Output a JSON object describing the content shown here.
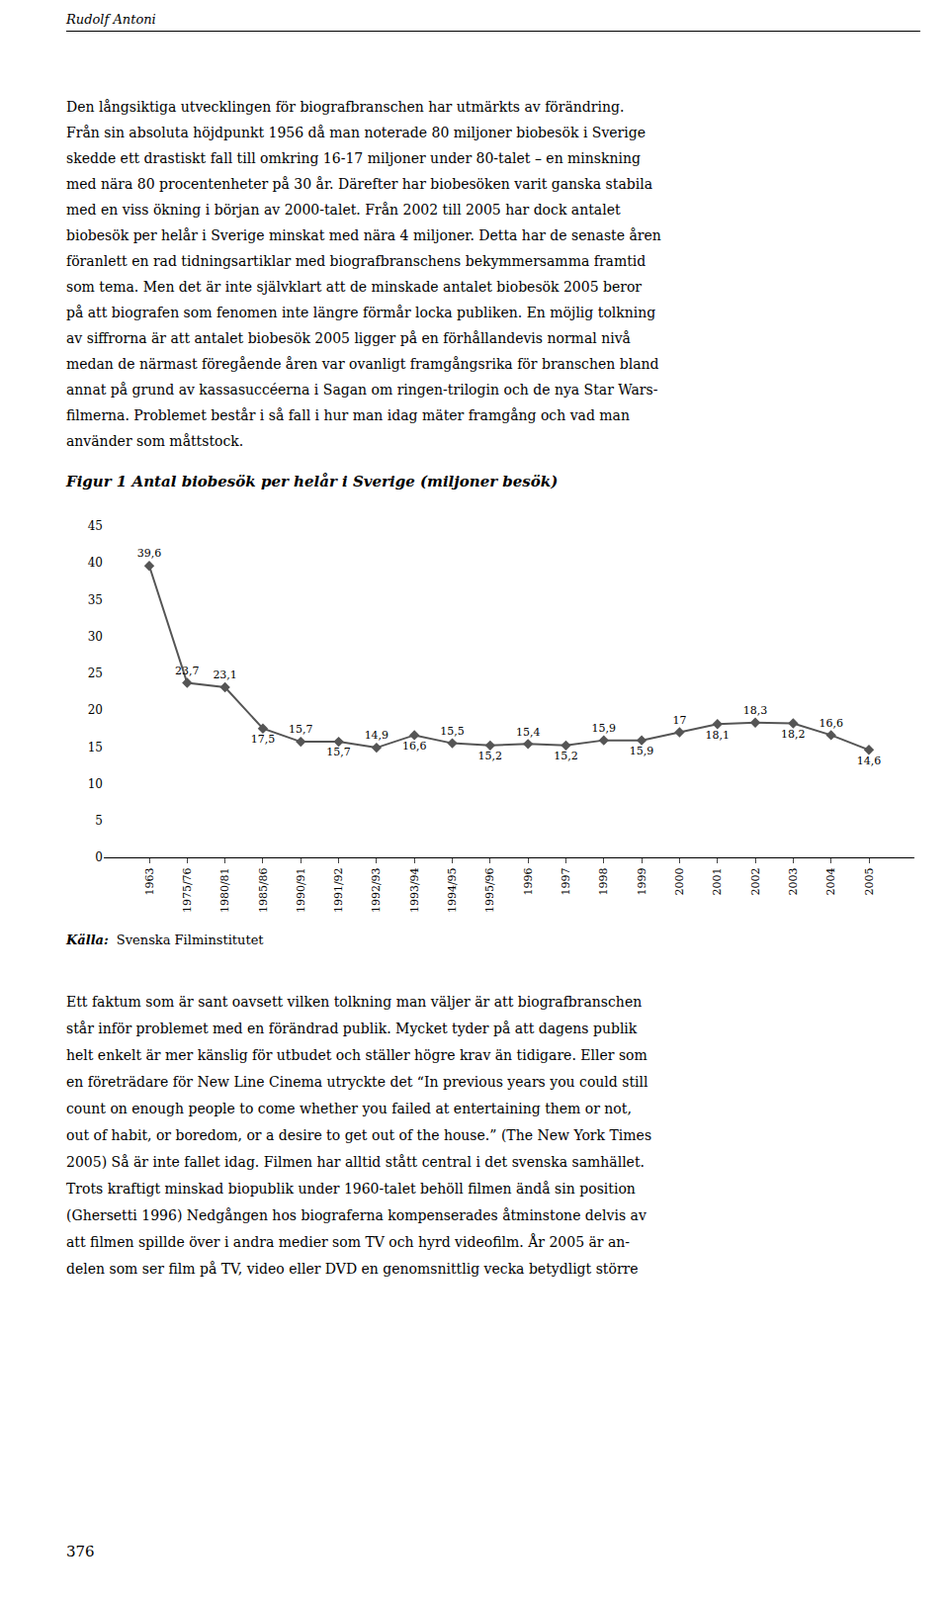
{
  "chart_data": {
    "type": "line",
    "title": "Figur 1 Antal biobesök per helår i Sverige (miljoner besök)",
    "header": "Rudolf Antoni",
    "categories": [
      "1963",
      "1975/76",
      "1980/81",
      "1985/86",
      "1990/91",
      "1991/92",
      "1992/93",
      "1993/94",
      "1994/95",
      "1995/96",
      "1996",
      "1997",
      "1998",
      "1999",
      "2000",
      "2001",
      "2002",
      "2003",
      "2004",
      "2005"
    ],
    "values": [
      39.6,
      23.7,
      23.1,
      17.5,
      15.7,
      15.7,
      14.9,
      16.6,
      15.5,
      15.2,
      15.4,
      15.2,
      15.9,
      15.9,
      17.0,
      18.1,
      18.3,
      18.2,
      16.6,
      14.6
    ],
    "value_labels": [
      "39,6",
      "23,7",
      "23,1",
      "17,5",
      "15,7",
      "15,7",
      "14,9",
      "16,6",
      "15,5",
      "15,2",
      "15,4",
      "15,2",
      "15,9",
      "15,9",
      "17",
      "18,1",
      "18,3",
      "18,2",
      "16,6",
      "14,6"
    ],
    "data_labels": true,
    "ylim": [
      0,
      45
    ],
    "yticks": [
      0,
      5,
      10,
      15,
      20,
      25,
      30,
      35,
      40,
      45
    ],
    "grid": false,
    "color": "#555555",
    "marker": "diamond",
    "source": [
      "Källa:",
      "Svenska Filminstitutet"
    ],
    "paragraphs": [
      [
        "Den långsiktiga utvecklingen för biografbranschen har utmärkts av förändring.",
        "Från sin absoluta höjdpunkt 1956 då man noterade 80 miljoner biobesök i Sverige",
        "skedde ett drastiskt fall till omkring 16-17 miljoner under 80-talet – en minskning",
        "med nära 80 procentenheter på 30 år. Därefter har biobesöken varit ganska stabila",
        "med en viss ökning i början av 2000-talet. Från 2002 till 2005 har dock antalet",
        "biobesök per helår i Sverige minskat med nära 4 miljoner. Detta har de senaste åren",
        "föranlett en rad tidningsartiklar med biografbranschens bekymmersamma framtid",
        "som tema. Men det är inte självklart att de minskade antalet biobesök 2005 beror",
        "på att biografen som fenomen inte längre förmår locka publiken. En möjlig tolkning",
        "av siffrorna är att antalet biobesök 2005 ligger på en förhållandevis normal nivå",
        "medan de närmast föregående åren var ovanligt framgångsrika för branschen bland",
        "annat på grund av kassasuccéerna i Sagan om ringen-trilogin och de nya Star Wars-",
        "filmerna. Problemet består i så fall i hur man idag mäter framgång och vad man",
        "använder som måttstock."
      ],
      [
        "Ett faktum som är sant oavsett vilken tolkning man väljer är att biografbranschen",
        "står inför problemet med en förändrad publik. Mycket tyder på att dagens publik",
        "helt enkelt är mer känslig för utbudet och ställer högre krav än tidigare. Eller som",
        "en företrädare för New Line Cinema utryckte det “In previous years you could still",
        "count on enough people to come whether you failed at entertaining them or not,",
        "out of habit, or boredom, or a desire to get out of the house.” (The New York Times",
        "2005) Så är inte fallet idag. Filmen har alltid stått central i det svenska samhället.",
        "Trots kraftigt minskad biopublik under 1960-talet behöll filmen ändå sin position",
        "(Ghersetti 1996) Nedgången hos biograferna kompenserades åtminstone delvis av",
        "att filmen spillde över i andra medier som TV och hyrd videofilm. År 2005 är an-",
        "delen som ser film på TV, video eller DVD en genomsnittlig vecka betydligt större"
      ]
    ],
    "page_number": "376"
  }
}
